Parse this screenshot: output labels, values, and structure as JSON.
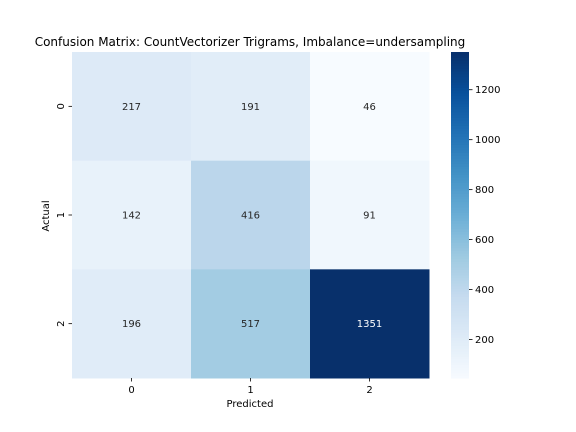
{
  "chart_data": {
    "type": "heatmap",
    "title": "Confusion Matrix: CountVectorizer Trigrams, Imbalance=undersampling",
    "xlabel": "Predicted",
    "ylabel": "Actual",
    "x_categories": [
      "0",
      "1",
      "2"
    ],
    "y_categories": [
      "0",
      "1",
      "2"
    ],
    "values": [
      [
        217,
        191,
        46
      ],
      [
        142,
        416,
        91
      ],
      [
        196,
        517,
        1351
      ]
    ],
    "colormap": "Blues",
    "colorbar": {
      "vmin": 46,
      "vmax": 1351,
      "ticks": [
        200,
        400,
        600,
        800,
        1000,
        1200
      ]
    },
    "grid": false
  }
}
